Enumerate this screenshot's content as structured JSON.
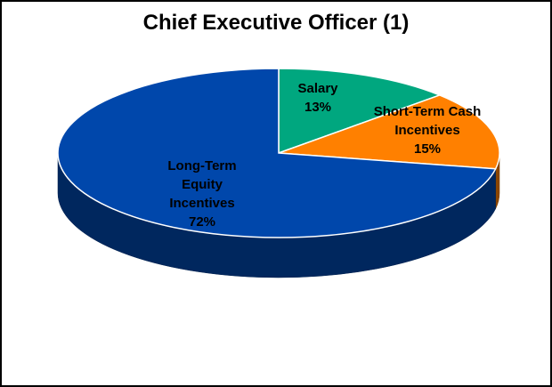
{
  "chart_data": {
    "type": "pie3d",
    "title": "Chief Executive Officer (1)",
    "categories": [
      "Salary",
      "Short-Term Cash Incentives",
      "Long-Term Equity Incentives"
    ],
    "values": [
      13,
      15,
      72
    ],
    "value_labels": [
      "13%",
      "15%",
      "72%"
    ],
    "colors": [
      "#00a77f",
      "#ff8000",
      "#0047ab"
    ]
  }
}
